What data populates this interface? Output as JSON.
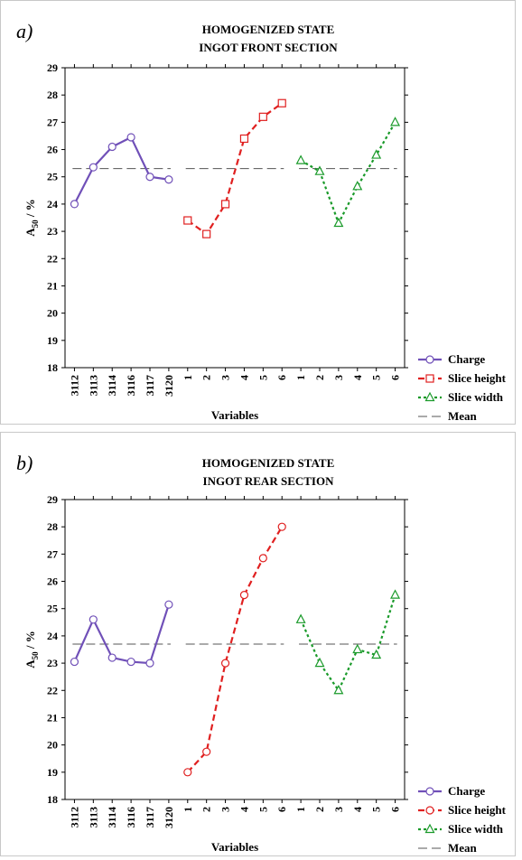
{
  "chart_data": [
    {
      "panel_label": "a)",
      "type": "line",
      "title_lines": [
        "HOMOGENIZED STATE",
        "INGOT FRONT SECTION"
      ],
      "xlabel": "Variables",
      "ylabel_main": "A",
      "ylabel_sub": "50",
      "ylabel_unit": " / %",
      "ylim": [
        18,
        29
      ],
      "yticks": [
        18,
        19,
        20,
        21,
        22,
        23,
        24,
        25,
        26,
        27,
        28,
        29
      ],
      "groups": [
        {
          "name": "Charge",
          "ticks": [
            "3112",
            "3113",
            "3114",
            "3116",
            "3117",
            "3120"
          ],
          "values": [
            24.0,
            25.35,
            26.1,
            26.45,
            25.0,
            24.9
          ],
          "color": "#7050b8",
          "marker": "circle",
          "dash": ""
        },
        {
          "name": "Slice height",
          "ticks": [
            "1",
            "2",
            "3",
            "4",
            "5",
            "6"
          ],
          "values": [
            23.4,
            22.9,
            24.0,
            26.4,
            27.2,
            27.7
          ],
          "color": "#e02020",
          "marker": "square",
          "dash": "7,4"
        },
        {
          "name": "Slice width",
          "ticks": [
            "1",
            "2",
            "3",
            "4",
            "5",
            "6"
          ],
          "values": [
            25.6,
            25.2,
            23.3,
            24.65,
            25.8,
            27.0
          ],
          "color": "#1a9a2a",
          "marker": "triangle",
          "dash": "3,3"
        }
      ],
      "mean": 25.3,
      "legend": [
        {
          "label": "Charge",
          "color": "#7050b8",
          "marker": "circle",
          "dash": ""
        },
        {
          "label": "Slice height",
          "color": "#e02020",
          "marker": "square",
          "dash": "7,4"
        },
        {
          "label": "Slice width",
          "color": "#1a9a2a",
          "marker": "triangle",
          "dash": "3,3"
        },
        {
          "label": "Mean",
          "color": "#555555",
          "marker": "none",
          "dash": "10,5"
        }
      ]
    },
    {
      "panel_label": "b)",
      "type": "line",
      "title_lines": [
        "HOMOGENIZED STATE",
        "INGOT REAR SECTION"
      ],
      "xlabel": "Variables",
      "ylabel_main": "A",
      "ylabel_sub": "50",
      "ylabel_unit": " / %",
      "ylim": [
        18,
        29
      ],
      "yticks": [
        18,
        19,
        20,
        21,
        22,
        23,
        24,
        25,
        26,
        27,
        28,
        29
      ],
      "groups": [
        {
          "name": "Charge",
          "ticks": [
            "3112",
            "3113",
            "3114",
            "3116",
            "3117",
            "3120"
          ],
          "values": [
            23.05,
            24.6,
            23.2,
            23.05,
            23.0,
            25.15
          ],
          "color": "#7050b8",
          "marker": "circle",
          "dash": ""
        },
        {
          "name": "Slice height",
          "ticks": [
            "1",
            "2",
            "3",
            "4",
            "5",
            "6"
          ],
          "values": [
            19.0,
            19.75,
            23.0,
            25.5,
            26.85,
            28.0
          ],
          "color": "#e02020",
          "marker": "circle",
          "dash": "7,4"
        },
        {
          "name": "Slice width",
          "ticks": [
            "1",
            "2",
            "3",
            "4",
            "5",
            "6"
          ],
          "values": [
            24.6,
            23.0,
            22.0,
            23.5,
            23.3,
            25.5
          ],
          "color": "#1a9a2a",
          "marker": "triangle",
          "dash": "3,3"
        }
      ],
      "mean": 23.7,
      "legend": [
        {
          "label": "Charge",
          "color": "#7050b8",
          "marker": "circle",
          "dash": ""
        },
        {
          "label": "Slice height",
          "color": "#e02020",
          "marker": "circle",
          "dash": "7,4"
        },
        {
          "label": "Slice width",
          "color": "#1a9a2a",
          "marker": "triangle",
          "dash": "3,3"
        },
        {
          "label": "Mean",
          "color": "#555555",
          "marker": "none",
          "dash": "10,5"
        }
      ]
    }
  ]
}
